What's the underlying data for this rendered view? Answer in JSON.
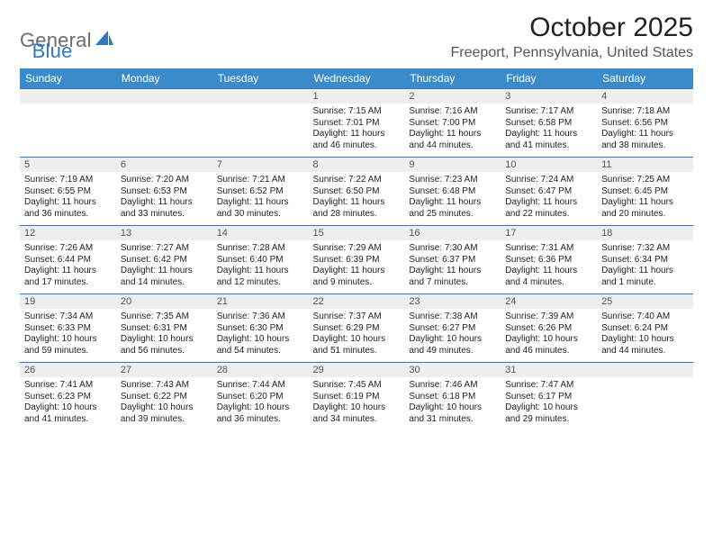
{
  "logo": {
    "left": "General",
    "right": "Blue"
  },
  "title": "October 2025",
  "location": "Freeport, Pennsylvania, United States",
  "colors": {
    "header_bg": "#3b8bca",
    "header_text": "#ffffff",
    "rule": "#2f79bf",
    "daynum_bg": "#eeeeee",
    "daynum_text": "#555555",
    "body_text": "#222222",
    "logo_gray": "#6b6b6b",
    "logo_blue": "#2f79bf",
    "page_bg": "#ffffff"
  },
  "typography": {
    "title_fontsize": 30,
    "location_fontsize": 16,
    "dayheader_fontsize": 12,
    "daynum_fontsize": 11,
    "detail_fontsize": 10,
    "font_family": "Arial"
  },
  "day_headers": [
    "Sunday",
    "Monday",
    "Tuesday",
    "Wednesday",
    "Thursday",
    "Friday",
    "Saturday"
  ],
  "weeks": [
    [
      null,
      null,
      null,
      {
        "n": "1",
        "sunrise": "Sunrise: 7:15 AM",
        "sunset": "Sunset: 7:01 PM",
        "d1": "Daylight: 11 hours",
        "d2": "and 46 minutes."
      },
      {
        "n": "2",
        "sunrise": "Sunrise: 7:16 AM",
        "sunset": "Sunset: 7:00 PM",
        "d1": "Daylight: 11 hours",
        "d2": "and 44 minutes."
      },
      {
        "n": "3",
        "sunrise": "Sunrise: 7:17 AM",
        "sunset": "Sunset: 6:58 PM",
        "d1": "Daylight: 11 hours",
        "d2": "and 41 minutes."
      },
      {
        "n": "4",
        "sunrise": "Sunrise: 7:18 AM",
        "sunset": "Sunset: 6:56 PM",
        "d1": "Daylight: 11 hours",
        "d2": "and 38 minutes."
      }
    ],
    [
      {
        "n": "5",
        "sunrise": "Sunrise: 7:19 AM",
        "sunset": "Sunset: 6:55 PM",
        "d1": "Daylight: 11 hours",
        "d2": "and 36 minutes."
      },
      {
        "n": "6",
        "sunrise": "Sunrise: 7:20 AM",
        "sunset": "Sunset: 6:53 PM",
        "d1": "Daylight: 11 hours",
        "d2": "and 33 minutes."
      },
      {
        "n": "7",
        "sunrise": "Sunrise: 7:21 AM",
        "sunset": "Sunset: 6:52 PM",
        "d1": "Daylight: 11 hours",
        "d2": "and 30 minutes."
      },
      {
        "n": "8",
        "sunrise": "Sunrise: 7:22 AM",
        "sunset": "Sunset: 6:50 PM",
        "d1": "Daylight: 11 hours",
        "d2": "and 28 minutes."
      },
      {
        "n": "9",
        "sunrise": "Sunrise: 7:23 AM",
        "sunset": "Sunset: 6:48 PM",
        "d1": "Daylight: 11 hours",
        "d2": "and 25 minutes."
      },
      {
        "n": "10",
        "sunrise": "Sunrise: 7:24 AM",
        "sunset": "Sunset: 6:47 PM",
        "d1": "Daylight: 11 hours",
        "d2": "and 22 minutes."
      },
      {
        "n": "11",
        "sunrise": "Sunrise: 7:25 AM",
        "sunset": "Sunset: 6:45 PM",
        "d1": "Daylight: 11 hours",
        "d2": "and 20 minutes."
      }
    ],
    [
      {
        "n": "12",
        "sunrise": "Sunrise: 7:26 AM",
        "sunset": "Sunset: 6:44 PM",
        "d1": "Daylight: 11 hours",
        "d2": "and 17 minutes."
      },
      {
        "n": "13",
        "sunrise": "Sunrise: 7:27 AM",
        "sunset": "Sunset: 6:42 PM",
        "d1": "Daylight: 11 hours",
        "d2": "and 14 minutes."
      },
      {
        "n": "14",
        "sunrise": "Sunrise: 7:28 AM",
        "sunset": "Sunset: 6:40 PM",
        "d1": "Daylight: 11 hours",
        "d2": "and 12 minutes."
      },
      {
        "n": "15",
        "sunrise": "Sunrise: 7:29 AM",
        "sunset": "Sunset: 6:39 PM",
        "d1": "Daylight: 11 hours",
        "d2": "and 9 minutes."
      },
      {
        "n": "16",
        "sunrise": "Sunrise: 7:30 AM",
        "sunset": "Sunset: 6:37 PM",
        "d1": "Daylight: 11 hours",
        "d2": "and 7 minutes."
      },
      {
        "n": "17",
        "sunrise": "Sunrise: 7:31 AM",
        "sunset": "Sunset: 6:36 PM",
        "d1": "Daylight: 11 hours",
        "d2": "and 4 minutes."
      },
      {
        "n": "18",
        "sunrise": "Sunrise: 7:32 AM",
        "sunset": "Sunset: 6:34 PM",
        "d1": "Daylight: 11 hours",
        "d2": "and 1 minute."
      }
    ],
    [
      {
        "n": "19",
        "sunrise": "Sunrise: 7:34 AM",
        "sunset": "Sunset: 6:33 PM",
        "d1": "Daylight: 10 hours",
        "d2": "and 59 minutes."
      },
      {
        "n": "20",
        "sunrise": "Sunrise: 7:35 AM",
        "sunset": "Sunset: 6:31 PM",
        "d1": "Daylight: 10 hours",
        "d2": "and 56 minutes."
      },
      {
        "n": "21",
        "sunrise": "Sunrise: 7:36 AM",
        "sunset": "Sunset: 6:30 PM",
        "d1": "Daylight: 10 hours",
        "d2": "and 54 minutes."
      },
      {
        "n": "22",
        "sunrise": "Sunrise: 7:37 AM",
        "sunset": "Sunset: 6:29 PM",
        "d1": "Daylight: 10 hours",
        "d2": "and 51 minutes."
      },
      {
        "n": "23",
        "sunrise": "Sunrise: 7:38 AM",
        "sunset": "Sunset: 6:27 PM",
        "d1": "Daylight: 10 hours",
        "d2": "and 49 minutes."
      },
      {
        "n": "24",
        "sunrise": "Sunrise: 7:39 AM",
        "sunset": "Sunset: 6:26 PM",
        "d1": "Daylight: 10 hours",
        "d2": "and 46 minutes."
      },
      {
        "n": "25",
        "sunrise": "Sunrise: 7:40 AM",
        "sunset": "Sunset: 6:24 PM",
        "d1": "Daylight: 10 hours",
        "d2": "and 44 minutes."
      }
    ],
    [
      {
        "n": "26",
        "sunrise": "Sunrise: 7:41 AM",
        "sunset": "Sunset: 6:23 PM",
        "d1": "Daylight: 10 hours",
        "d2": "and 41 minutes."
      },
      {
        "n": "27",
        "sunrise": "Sunrise: 7:43 AM",
        "sunset": "Sunset: 6:22 PM",
        "d1": "Daylight: 10 hours",
        "d2": "and 39 minutes."
      },
      {
        "n": "28",
        "sunrise": "Sunrise: 7:44 AM",
        "sunset": "Sunset: 6:20 PM",
        "d1": "Daylight: 10 hours",
        "d2": "and 36 minutes."
      },
      {
        "n": "29",
        "sunrise": "Sunrise: 7:45 AM",
        "sunset": "Sunset: 6:19 PM",
        "d1": "Daylight: 10 hours",
        "d2": "and 34 minutes."
      },
      {
        "n": "30",
        "sunrise": "Sunrise: 7:46 AM",
        "sunset": "Sunset: 6:18 PM",
        "d1": "Daylight: 10 hours",
        "d2": "and 31 minutes."
      },
      {
        "n": "31",
        "sunrise": "Sunrise: 7:47 AM",
        "sunset": "Sunset: 6:17 PM",
        "d1": "Daylight: 10 hours",
        "d2": "and 29 minutes."
      },
      null
    ]
  ]
}
